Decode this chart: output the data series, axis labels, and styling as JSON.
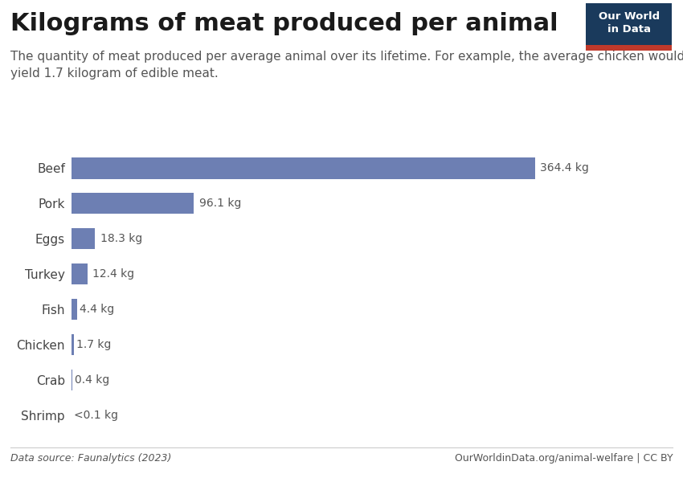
{
  "title": "Kilograms of meat produced per animal",
  "subtitle": "The quantity of meat produced per average animal over its lifetime. For example, the average chicken would\nyield 1.7 kilogram of edible meat.",
  "categories": [
    "Beef",
    "Pork",
    "Eggs",
    "Turkey",
    "Fish",
    "Chicken",
    "Crab",
    "Shrimp"
  ],
  "values": [
    364.4,
    96.1,
    18.3,
    12.4,
    4.4,
    1.7,
    0.4,
    0.05
  ],
  "labels": [
    "364.4 kg",
    "96.1 kg",
    "18.3 kg",
    "12.4 kg",
    "4.4 kg",
    "1.7 kg",
    "0.4 kg",
    "<0.1 kg"
  ],
  "bar_color": "#6d7fb3",
  "background_color": "#ffffff",
  "data_source": "Data source: Faunalytics (2023)",
  "url": "OurWorldinData.org/animal-welfare | CC BY",
  "owid_box_color": "#1a3a5c",
  "owid_line_color": "#c0392b",
  "owid_text": "Our World\nin Data",
  "title_fontsize": 22,
  "subtitle_fontsize": 11,
  "label_fontsize": 10,
  "category_fontsize": 11,
  "footer_fontsize": 9
}
